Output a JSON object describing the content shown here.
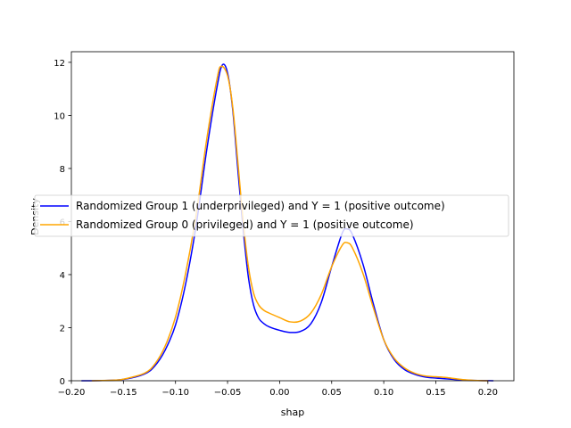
{
  "chart_data": {
    "type": "line",
    "xlabel": "shap",
    "ylabel": "Density",
    "xlim": [
      -0.2,
      0.225
    ],
    "ylim": [
      0,
      12.4
    ],
    "xticks": [
      -0.2,
      -0.15,
      -0.1,
      -0.05,
      0.0,
      0.05,
      0.1,
      0.15,
      0.2
    ],
    "xtick_labels": [
      "−0.20",
      "−0.15",
      "−0.10",
      "−0.05",
      "0.00",
      "0.05",
      "0.10",
      "0.15",
      "0.20"
    ],
    "yticks": [
      0,
      2,
      4,
      6,
      8,
      10,
      12
    ],
    "ytick_labels": [
      "0",
      "2",
      "4",
      "6",
      "8",
      "10",
      "12"
    ],
    "grid": false,
    "legend_position": "center-left",
    "series": [
      {
        "name": "Randomized Group 1 (underprivileged) and Y = 1 (positive outcome)",
        "color": "#0000ff",
        "points": [
          [
            -0.19,
            0.0
          ],
          [
            -0.17,
            0.01
          ],
          [
            -0.15,
            0.05
          ],
          [
            -0.13,
            0.25
          ],
          [
            -0.12,
            0.55
          ],
          [
            -0.11,
            1.15
          ],
          [
            -0.1,
            2.1
          ],
          [
            -0.09,
            3.7
          ],
          [
            -0.08,
            5.9
          ],
          [
            -0.07,
            8.7
          ],
          [
            -0.06,
            11.1
          ],
          [
            -0.055,
            11.9
          ],
          [
            -0.05,
            11.6
          ],
          [
            -0.045,
            10.2
          ],
          [
            -0.04,
            7.9
          ],
          [
            -0.035,
            5.7
          ],
          [
            -0.03,
            3.9
          ],
          [
            -0.025,
            2.85
          ],
          [
            -0.02,
            2.35
          ],
          [
            -0.015,
            2.15
          ],
          [
            -0.01,
            2.03
          ],
          [
            0.0,
            1.9
          ],
          [
            0.01,
            1.82
          ],
          [
            0.02,
            1.86
          ],
          [
            0.03,
            2.15
          ],
          [
            0.04,
            2.95
          ],
          [
            0.05,
            4.3
          ],
          [
            0.06,
            5.55
          ],
          [
            0.065,
            5.72
          ],
          [
            0.07,
            5.5
          ],
          [
            0.08,
            4.4
          ],
          [
            0.09,
            2.9
          ],
          [
            0.1,
            1.55
          ],
          [
            0.11,
            0.8
          ],
          [
            0.12,
            0.42
          ],
          [
            0.13,
            0.24
          ],
          [
            0.14,
            0.14
          ],
          [
            0.15,
            0.1
          ],
          [
            0.16,
            0.07
          ],
          [
            0.18,
            0.02
          ],
          [
            0.205,
            0.0
          ]
        ]
      },
      {
        "name": "Randomized Group 0 (privileged) and Y = 1 (positive outcome)",
        "color": "#ffa500",
        "points": [
          [
            -0.18,
            0.0
          ],
          [
            -0.16,
            0.02
          ],
          [
            -0.15,
            0.06
          ],
          [
            -0.13,
            0.28
          ],
          [
            -0.12,
            0.62
          ],
          [
            -0.11,
            1.3
          ],
          [
            -0.1,
            2.4
          ],
          [
            -0.09,
            4.1
          ],
          [
            -0.08,
            6.3
          ],
          [
            -0.07,
            9.1
          ],
          [
            -0.06,
            11.4
          ],
          [
            -0.056,
            11.85
          ],
          [
            -0.05,
            11.5
          ],
          [
            -0.045,
            10.3
          ],
          [
            -0.04,
            8.2
          ],
          [
            -0.035,
            6.0
          ],
          [
            -0.03,
            4.3
          ],
          [
            -0.025,
            3.3
          ],
          [
            -0.02,
            2.85
          ],
          [
            -0.015,
            2.65
          ],
          [
            -0.01,
            2.55
          ],
          [
            0.0,
            2.38
          ],
          [
            0.01,
            2.22
          ],
          [
            0.02,
            2.25
          ],
          [
            0.03,
            2.55
          ],
          [
            0.04,
            3.25
          ],
          [
            0.05,
            4.3
          ],
          [
            0.06,
            5.1
          ],
          [
            0.065,
            5.2
          ],
          [
            0.07,
            5.0
          ],
          [
            0.08,
            4.05
          ],
          [
            0.09,
            2.75
          ],
          [
            0.1,
            1.55
          ],
          [
            0.11,
            0.85
          ],
          [
            0.12,
            0.48
          ],
          [
            0.13,
            0.28
          ],
          [
            0.14,
            0.18
          ],
          [
            0.15,
            0.15
          ],
          [
            0.16,
            0.12
          ],
          [
            0.17,
            0.07
          ],
          [
            0.18,
            0.03
          ],
          [
            0.19,
            0.01
          ],
          [
            0.2,
            0.0
          ]
        ]
      }
    ]
  }
}
